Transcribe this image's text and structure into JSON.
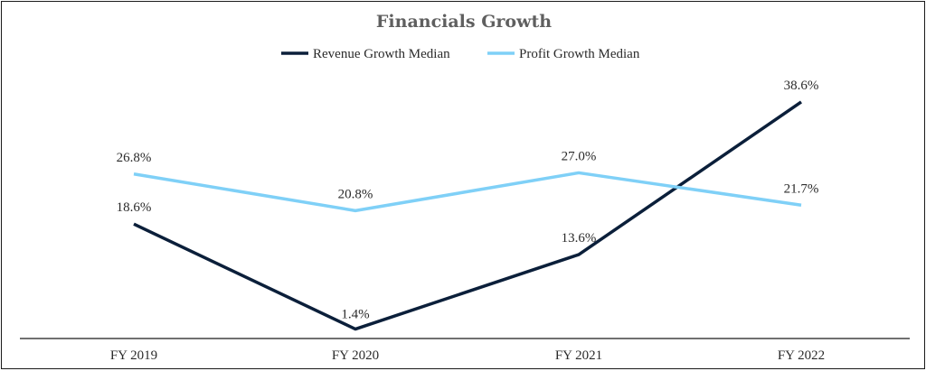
{
  "chart_data": {
    "type": "line",
    "title": "Financials Growth",
    "categories": [
      "FY 2019",
      "FY 2020",
      "FY 2021",
      "FY 2022"
    ],
    "series": [
      {
        "name": "Revenue Growth Median",
        "values": [
          18.6,
          1.4,
          13.6,
          38.6
        ],
        "labels": [
          "18.6%",
          "1.4%",
          "13.6%",
          "38.6%"
        ],
        "color": "#0b1f3a"
      },
      {
        "name": "Profit Growth Median",
        "values": [
          26.8,
          20.8,
          27.0,
          21.7
        ],
        "labels": [
          "26.8%",
          "20.8%",
          "27.0%",
          "21.7%"
        ],
        "color": "#7fd0f7"
      }
    ],
    "ylim": [
      0,
      42
    ],
    "grid": false,
    "legend_position": "top-center"
  }
}
